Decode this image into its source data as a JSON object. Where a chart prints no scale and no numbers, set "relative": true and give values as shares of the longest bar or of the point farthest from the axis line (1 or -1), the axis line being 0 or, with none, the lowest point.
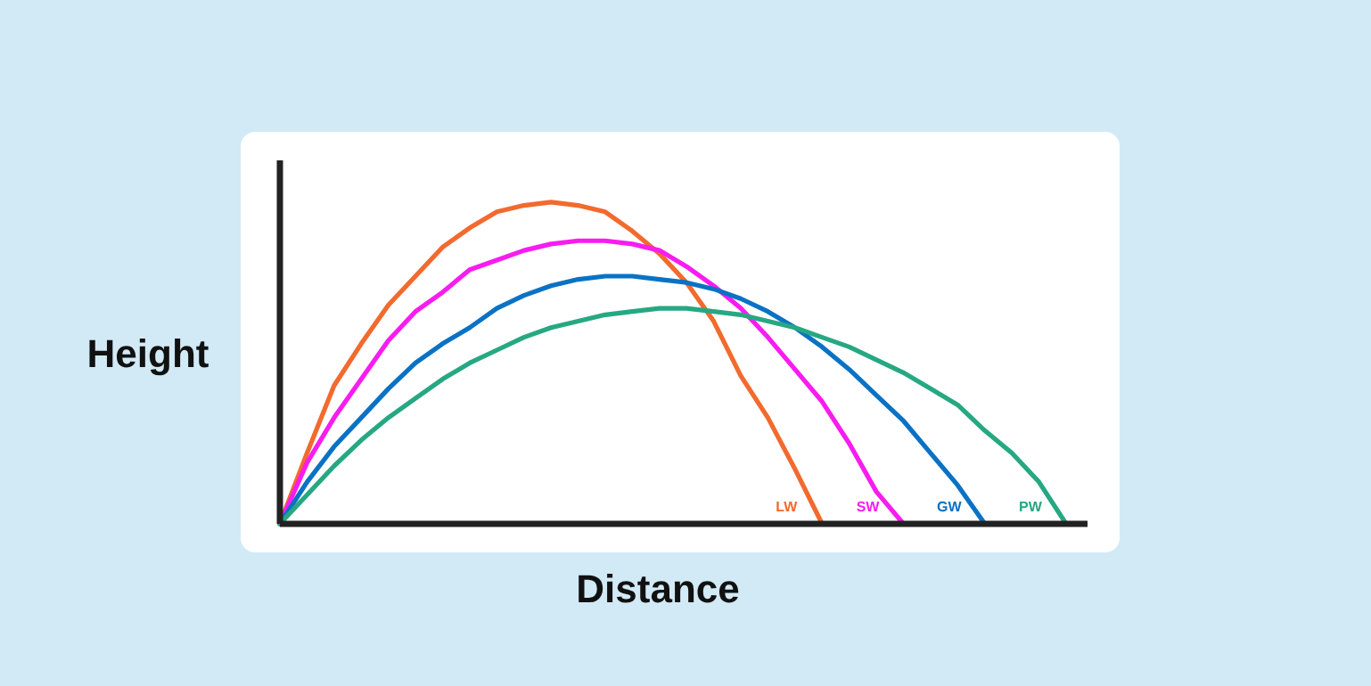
{
  "chart_data": {
    "type": "line",
    "relative": true,
    "xlabel": "Distance",
    "ylabel": "Height",
    "legend": false,
    "marker": "none",
    "line_style": "solid",
    "categories": [
      null,
      null,
      null,
      null,
      null,
      null,
      null,
      null,
      null,
      null,
      null,
      null,
      null,
      null,
      null,
      null,
      null,
      null,
      null,
      null,
      null,
      null,
      null,
      null,
      null,
      null,
      null,
      null,
      null,
      null
    ],
    "series": [
      {
        "name": "LW",
        "color": "#f26a2e",
        "values": [
          0,
          0.22,
          0.43,
          0.56,
          0.68,
          0.77,
          0.86,
          0.92,
          0.97,
          0.99,
          1,
          0.99,
          0.97,
          0.91,
          0.84,
          0.75,
          0.63,
          0.46,
          0.33,
          0.17,
          0,
          null,
          null,
          null,
          null,
          null,
          null,
          null,
          null,
          null
        ]
      },
      {
        "name": "SW",
        "color": "#f81cf0",
        "values": [
          0,
          0.19,
          0.33,
          0.45,
          0.57,
          0.66,
          0.72,
          0.79,
          0.82,
          0.85,
          0.87,
          0.88,
          0.88,
          0.87,
          0.85,
          0.8,
          0.74,
          0.67,
          0.58,
          0.48,
          0.38,
          0.25,
          0.1,
          0,
          null,
          null,
          null,
          null,
          null,
          null
        ]
      },
      {
        "name": "GW",
        "color": "#0a72c4",
        "values": [
          0,
          0.13,
          0.24,
          0.33,
          0.42,
          0.5,
          0.56,
          0.61,
          0.67,
          0.71,
          0.74,
          0.76,
          0.77,
          0.77,
          0.76,
          0.75,
          0.73,
          0.7,
          0.66,
          0.61,
          0.55,
          0.48,
          0.4,
          0.32,
          0.22,
          0.12,
          0,
          null,
          null,
          null
        ]
      },
      {
        "name": "PW",
        "color": "#26a882",
        "values": [
          0,
          0.09,
          0.18,
          0.26,
          0.33,
          0.39,
          0.45,
          0.5,
          0.54,
          0.58,
          0.61,
          0.63,
          0.65,
          0.66,
          0.67,
          0.67,
          0.66,
          0.65,
          0.63,
          0.61,
          0.58,
          0.55,
          0.51,
          0.47,
          0.42,
          0.37,
          0.29,
          0.22,
          0.13,
          0
        ]
      }
    ]
  }
}
